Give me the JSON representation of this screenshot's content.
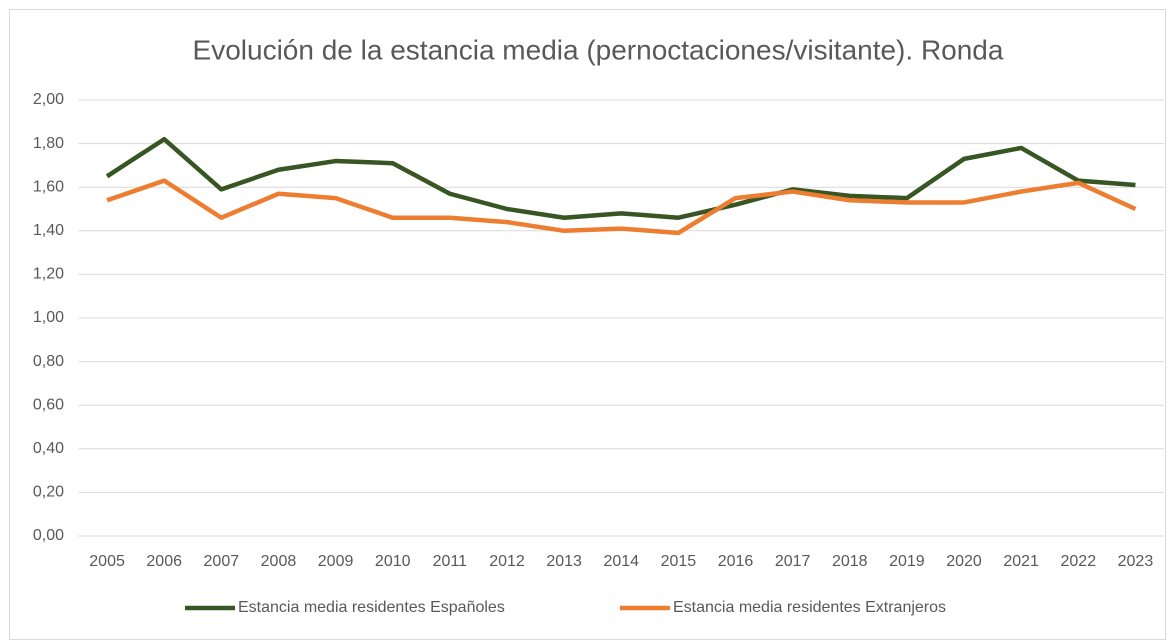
{
  "chart_data": {
    "type": "line",
    "title": "Evolución de la estancia media (pernoctaciones/visitante). Ronda",
    "categories": [
      "2005",
      "2006",
      "2007",
      "2008",
      "2009",
      "2010",
      "2011",
      "2012",
      "2013",
      "2014",
      "2015",
      "2016",
      "2017",
      "2018",
      "2019",
      "2020",
      "2021",
      "2022",
      "2023"
    ],
    "series": [
      {
        "name": "Estancia media residentes Españoles",
        "color": "#375623",
        "values": [
          1.65,
          1.82,
          1.59,
          1.68,
          1.72,
          1.71,
          1.57,
          1.5,
          1.46,
          1.48,
          1.46,
          1.52,
          1.59,
          1.56,
          1.55,
          1.73,
          1.78,
          1.63,
          1.61
        ]
      },
      {
        "name": "Estancia media residentes Extranjeros",
        "color": "#ED7D31",
        "values": [
          1.54,
          1.63,
          1.46,
          1.57,
          1.55,
          1.46,
          1.46,
          1.44,
          1.4,
          1.41,
          1.39,
          1.55,
          1.58,
          1.54,
          1.53,
          1.53,
          1.58,
          1.62,
          1.5
        ]
      }
    ],
    "ylim": [
      0,
      2
    ],
    "yticks": [
      {
        "value": 0,
        "label": "0,00"
      },
      {
        "value": 0.2,
        "label": "0,20"
      },
      {
        "value": 0.4,
        "label": "0,40"
      },
      {
        "value": 0.6,
        "label": "0,60"
      },
      {
        "value": 0.8,
        "label": "0,80"
      },
      {
        "value": 1,
        "label": "1,00"
      },
      {
        "value": 1.2,
        "label": "1,20"
      },
      {
        "value": 1.4,
        "label": "1,40"
      },
      {
        "value": 1.6,
        "label": "1,60"
      },
      {
        "value": 1.8,
        "label": "1,80"
      },
      {
        "value": 2,
        "label": "2,00"
      }
    ],
    "grid": true,
    "legend": "bottom"
  }
}
